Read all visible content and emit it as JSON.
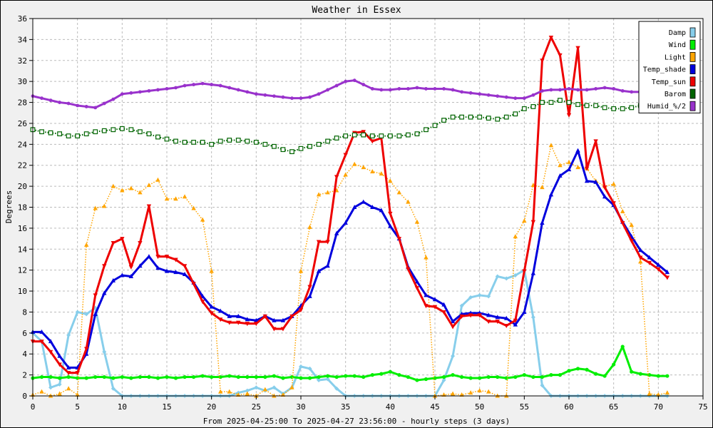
{
  "chart_data": {
    "type": "line",
    "title": "Weather in Essex",
    "xlabel": "From 2025-04-25:00 To 2025-04-27 23:56:00 - hourly steps (3 days)",
    "ylabel": "Degrees",
    "xlim": [
      0,
      75
    ],
    "ylim": [
      0,
      36
    ],
    "xticks": [
      0,
      5,
      10,
      15,
      20,
      25,
      30,
      35,
      40,
      45,
      50,
      55,
      60,
      65,
      70,
      75
    ],
    "yticks": [
      0,
      2,
      4,
      6,
      8,
      10,
      12,
      14,
      16,
      18,
      20,
      22,
      24,
      26,
      28,
      30,
      32,
      34,
      36
    ],
    "grid": true,
    "legend_position": "top-right",
    "x": [
      0,
      1,
      2,
      3,
      4,
      5,
      6,
      7,
      8,
      9,
      10,
      11,
      12,
      13,
      14,
      15,
      16,
      17,
      18,
      19,
      20,
      21,
      22,
      23,
      24,
      25,
      26,
      27,
      28,
      29,
      30,
      31,
      32,
      33,
      34,
      35,
      36,
      37,
      38,
      39,
      40,
      41,
      42,
      43,
      44,
      45,
      46,
      47,
      48,
      49,
      50,
      51,
      52,
      53,
      54,
      55,
      56,
      57,
      58,
      59,
      60,
      61,
      62,
      63,
      64,
      65,
      66,
      67,
      68,
      69,
      70,
      71
    ],
    "series": [
      {
        "name": "Damp",
        "color": "#87ceeb",
        "marker": "diamond",
        "style": "solid",
        "width": 3,
        "values": [
          6.0,
          5.2,
          0.8,
          1.1,
          5.8,
          8.0,
          7.8,
          8.4,
          4.2,
          0.7,
          0,
          0,
          0,
          0,
          0,
          0,
          0,
          0,
          0,
          0,
          0,
          0,
          0,
          0.3,
          0.5,
          0.8,
          0.5,
          0.8,
          0.2,
          0.8,
          2.8,
          2.6,
          1.5,
          1.6,
          0.7,
          0,
          0,
          0,
          0,
          0,
          0,
          0,
          0,
          0,
          0,
          0,
          1.5,
          3.8,
          8.6,
          9.4,
          9.6,
          9.5,
          11.4,
          11.2,
          11.5,
          12.0,
          7.5,
          1.0,
          0,
          0,
          0,
          0,
          0,
          0,
          0,
          0,
          0,
          0,
          0,
          0,
          0,
          0
        ]
      },
      {
        "name": "Wind",
        "color": "#00ee00",
        "marker": "circle",
        "style": "solid",
        "width": 3,
        "values": [
          1.7,
          1.8,
          1.8,
          1.7,
          1.8,
          1.7,
          1.7,
          1.8,
          1.8,
          1.7,
          1.8,
          1.7,
          1.8,
          1.8,
          1.7,
          1.8,
          1.7,
          1.8,
          1.8,
          1.9,
          1.8,
          1.8,
          1.9,
          1.8,
          1.8,
          1.8,
          1.8,
          1.9,
          1.7,
          1.8,
          1.7,
          1.7,
          1.8,
          1.9,
          1.8,
          1.9,
          1.9,
          1.8,
          2.0,
          2.1,
          2.3,
          2.0,
          1.8,
          1.5,
          1.6,
          1.7,
          1.8,
          2.0,
          1.8,
          1.7,
          1.7,
          1.8,
          1.8,
          1.7,
          1.8,
          2.0,
          1.8,
          1.8,
          2.0,
          2.0,
          2.4,
          2.6,
          2.5,
          2.1,
          1.9,
          3.0,
          4.7,
          2.3,
          2.1,
          2.0,
          1.9,
          1.9
        ]
      },
      {
        "name": "Light",
        "color": "#ffa500",
        "marker": "triangle",
        "style": "dotted",
        "width": 1.5,
        "values": [
          0.1,
          0.4,
          0,
          0.2,
          0.7,
          0.1,
          14.4,
          17.9,
          18.1,
          20.0,
          19.6,
          19.8,
          19.4,
          20.1,
          20.6,
          18.8,
          18.8,
          19.0,
          17.9,
          16.8,
          11.9,
          0.4,
          0.4,
          0.1,
          0.2,
          0,
          0.6,
          0,
          0.1,
          0.8,
          11.9,
          16.1,
          19.2,
          19.4,
          19.6,
          21.1,
          22.1,
          21.8,
          21.4,
          21.2,
          20.5,
          19.4,
          18.5,
          16.6,
          13.2,
          0,
          0.1,
          0.2,
          0.1,
          0.3,
          0.5,
          0.4,
          0,
          0,
          15.2,
          16.7,
          20.1,
          19.9,
          23.9,
          22.0,
          22.3,
          21.8,
          21.7,
          20.5,
          20.0,
          20.2,
          17.6,
          16.3,
          12.8,
          0.2,
          0.1,
          0.3
        ]
      },
      {
        "name": "Temp_shade",
        "color": "#0000dd",
        "marker": "triangle",
        "style": "solid",
        "width": 3,
        "values": [
          6.1,
          6.1,
          5.2,
          3.8,
          2.7,
          2.7,
          4.0,
          7.8,
          9.8,
          11.0,
          11.5,
          11.4,
          12.4,
          13.3,
          12.2,
          11.9,
          11.8,
          11.6,
          10.8,
          9.5,
          8.5,
          8.1,
          7.6,
          7.6,
          7.3,
          7.2,
          7.6,
          7.2,
          7.2,
          7.6,
          8.6,
          9.5,
          11.9,
          12.4,
          15.5,
          16.5,
          18.0,
          18.5,
          18.0,
          17.7,
          16.2,
          15.0,
          12.3,
          10.9,
          9.6,
          9.2,
          8.7,
          7.1,
          7.8,
          7.9,
          7.9,
          7.7,
          7.5,
          7.4,
          6.8,
          8.0,
          11.7,
          16.5,
          19.2,
          21.0,
          21.6,
          23.4,
          20.5,
          20.4,
          19.0,
          18.2,
          16.6,
          15.2,
          13.9,
          13.2,
          12.5,
          11.8
        ]
      },
      {
        "name": "Temp_sun",
        "color": "#ee0000",
        "marker": "triangle-down",
        "style": "solid",
        "width": 3,
        "values": [
          5.2,
          5.2,
          4.2,
          3.0,
          2.2,
          2.2,
          4.5,
          9.6,
          12.4,
          14.6,
          15.0,
          12.3,
          14.6,
          18.1,
          13.3,
          13.3,
          13.0,
          12.4,
          10.7,
          9.0,
          7.9,
          7.3,
          7.0,
          7.0,
          6.9,
          6.9,
          7.6,
          6.4,
          6.4,
          7.6,
          8.2,
          10.4,
          14.7,
          14.7,
          20.9,
          23.0,
          25.1,
          25.2,
          24.3,
          24.6,
          17.4,
          15.0,
          12.1,
          10.3,
          8.6,
          8.5,
          8.0,
          6.6,
          7.6,
          7.7,
          7.7,
          7.1,
          7.1,
          6.7,
          7.2,
          11.9,
          16.6,
          32.0,
          34.2,
          32.5,
          26.8,
          33.2,
          21.7,
          24.3,
          19.9,
          18.4,
          16.5,
          14.8,
          13.2,
          12.7,
          12.1,
          11.3
        ]
      },
      {
        "name": "Barom",
        "color": "#006400",
        "marker": "square-open",
        "style": "dotted",
        "width": 2,
        "values": [
          25.4,
          25.2,
          25.1,
          25.0,
          24.8,
          24.8,
          25.0,
          25.2,
          25.3,
          25.4,
          25.5,
          25.4,
          25.2,
          25.0,
          24.7,
          24.5,
          24.3,
          24.2,
          24.2,
          24.2,
          24.0,
          24.3,
          24.4,
          24.4,
          24.3,
          24.2,
          24.0,
          23.8,
          23.5,
          23.3,
          23.6,
          23.8,
          24.0,
          24.3,
          24.6,
          24.8,
          24.9,
          24.9,
          24.8,
          24.8,
          24.8,
          24.8,
          24.9,
          25.0,
          25.4,
          25.8,
          26.3,
          26.6,
          26.6,
          26.6,
          26.6,
          26.5,
          26.4,
          26.6,
          26.9,
          27.4,
          27.6,
          28.0,
          28.0,
          28.2,
          28.0,
          27.8,
          27.7,
          27.7,
          27.5,
          27.4,
          27.4,
          27.5,
          27.7,
          27.7,
          27.8,
          28.1
        ]
      },
      {
        "name": "Humid_%/2",
        "color": "#9932cc",
        "marker": "star",
        "style": "solid",
        "width": 3,
        "values": [
          28.6,
          28.4,
          28.2,
          28.0,
          27.9,
          27.7,
          27.6,
          27.5,
          27.9,
          28.3,
          28.8,
          28.9,
          29.0,
          29.1,
          29.2,
          29.3,
          29.4,
          29.6,
          29.7,
          29.8,
          29.7,
          29.6,
          29.4,
          29.2,
          29.0,
          28.8,
          28.7,
          28.6,
          28.5,
          28.4,
          28.4,
          28.5,
          28.8,
          29.2,
          29.6,
          30.0,
          30.1,
          29.7,
          29.3,
          29.2,
          29.2,
          29.3,
          29.3,
          29.4,
          29.3,
          29.3,
          29.3,
          29.2,
          29.0,
          28.9,
          28.8,
          28.7,
          28.6,
          28.5,
          28.4,
          28.4,
          28.7,
          29.1,
          29.2,
          29.2,
          29.3,
          29.2,
          29.2,
          29.3,
          29.4,
          29.3,
          29.1,
          29.0,
          29.0,
          29.0,
          29.0,
          29.0
        ]
      }
    ]
  }
}
